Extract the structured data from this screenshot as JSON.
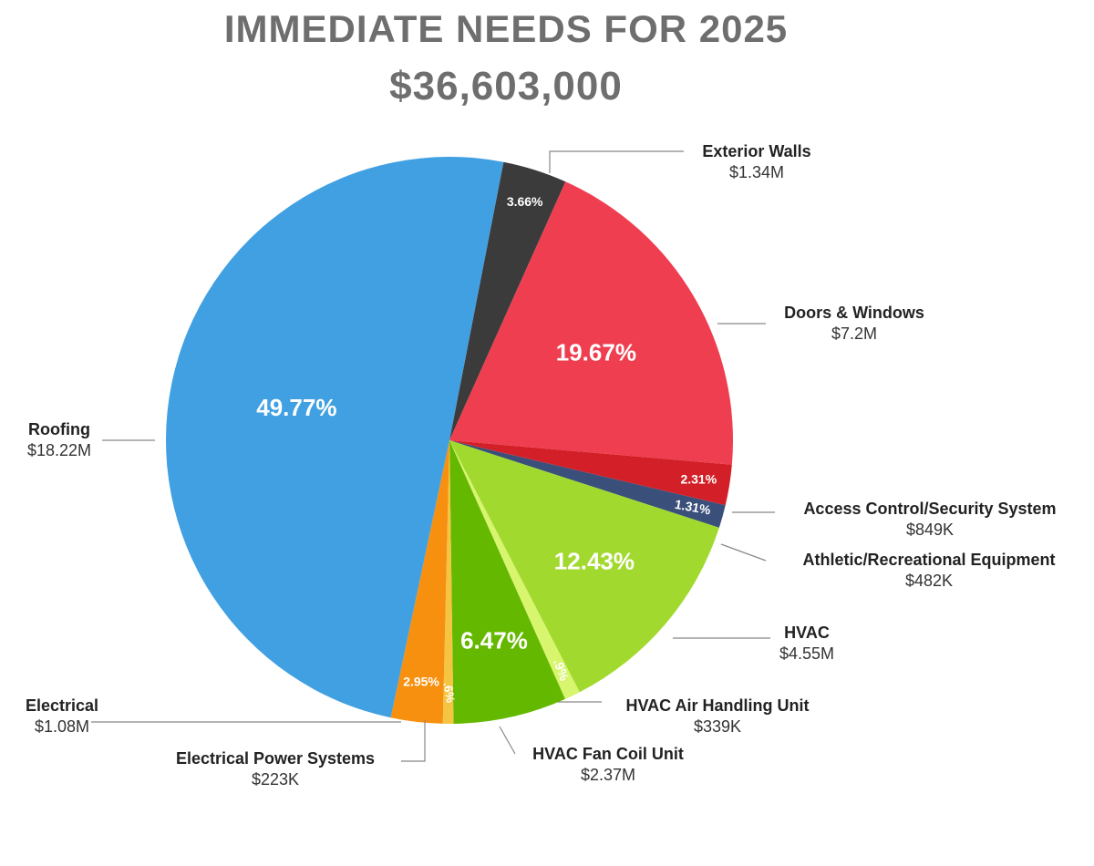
{
  "title": "IMMEDIATE NEEDS FOR 2025",
  "subtitle": "$36,603,000",
  "chart_data": {
    "type": "pie",
    "title": "IMMEDIATE NEEDS FOR 2025",
    "subtitle": "$36,603,000",
    "slices": [
      {
        "name": "Exterior Walls",
        "value_label": "$1.34M",
        "value": 1.34,
        "percent": 3.66,
        "percent_label": "3.66%",
        "color": "#3b3b3b"
      },
      {
        "name": "Doors & Windows",
        "value_label": "$7.2M",
        "value": 7.2,
        "percent": 19.67,
        "percent_label": "19.67%",
        "color": "#ef3e50"
      },
      {
        "name": "Access Control/Security System",
        "value_label": "$849K",
        "value": 0.849,
        "percent": 2.31,
        "percent_label": "2.31%",
        "color": "#d32028"
      },
      {
        "name": "Athletic/Recreational Equipment",
        "value_label": "$482K",
        "value": 0.482,
        "percent": 1.31,
        "percent_label": "1.31%",
        "color": "#3a4f7a"
      },
      {
        "name": "HVAC",
        "value_label": "$4.55M",
        "value": 4.55,
        "percent": 12.43,
        "percent_label": "12.43%",
        "color": "#a2d92f"
      },
      {
        "name": "HVAC Air Handling Unit",
        "value_label": "$339K",
        "value": 0.339,
        "percent": 0.9,
        "percent_label": ".9%",
        "color": "#d8f56e"
      },
      {
        "name": "HVAC Fan Coil Unit",
        "value_label": "$2.37M",
        "value": 2.37,
        "percent": 6.47,
        "percent_label": "6.47%",
        "color": "#65b800"
      },
      {
        "name": "Electrical Power Systems",
        "value_label": "$223K",
        "value": 0.223,
        "percent": 0.6,
        "percent_label": ".6%",
        "color": "#f5c542"
      },
      {
        "name": "Electrical",
        "value_label": "$1.08M",
        "value": 1.08,
        "percent": 2.95,
        "percent_label": "2.95%",
        "color": "#f7900f"
      },
      {
        "name": "Roofing",
        "value_label": "$18.22M",
        "value": 18.22,
        "percent": 49.77,
        "percent_label": "49.77%",
        "color": "#41a0e2"
      }
    ]
  }
}
